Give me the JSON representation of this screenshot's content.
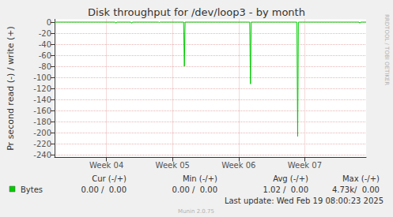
{
  "chart_data": {
    "type": "line",
    "title": "Disk throughput for /dev/loop3 - by month",
    "y_label": "Pr second read (-) / write (+)",
    "side_label": "RRDTOOL / TOBI OETIKER",
    "x": [
      0,
      6.42,
      6.5,
      6.58,
      8.08,
      8.17,
      8.25,
      11.0,
      11.08,
      11.17,
      13.67,
      13.75,
      13.83,
      20.67,
      20.75,
      20.83,
      25.67,
      25.75,
      25.83,
      32.25,
      32.33,
      32.42,
      33
    ],
    "series": [
      {
        "name": "Bytes",
        "color": "#00cc00",
        "values": [
          0,
          0,
          -2,
          0,
          0,
          -2,
          0,
          0,
          -1,
          0,
          0,
          -80,
          0,
          0,
          -112,
          0,
          0,
          -207,
          0,
          0,
          -2,
          0,
          0
        ]
      }
    ],
    "xlim": [
      0,
      33
    ],
    "xticks": [
      {
        "value": 5.5,
        "label": "Week 04"
      },
      {
        "value": 12.5,
        "label": "Week 05"
      },
      {
        "value": 19.5,
        "label": "Week 06"
      },
      {
        "value": 26.5,
        "label": "Week 07"
      }
    ],
    "ylim": [
      -245,
      5
    ],
    "yticks": [
      0,
      -20,
      -40,
      -60,
      -80,
      -100,
      -120,
      -140,
      -160,
      -180,
      -200,
      -220,
      -240
    ],
    "grid": true,
    "stats": {
      "headers": [
        "Cur (-/+)",
        "Min (-/+)",
        "Avg (-/+)",
        "Max (-/+)"
      ],
      "cells": [
        "0.00 /  0.00",
        "0.00 /  0.00",
        "1.02 /  0.00",
        "4.73k/  0.00"
      ]
    },
    "last_update": "Last update: Wed Feb 19 08:00:23 2025",
    "footer": "Munin 2.0.75"
  }
}
